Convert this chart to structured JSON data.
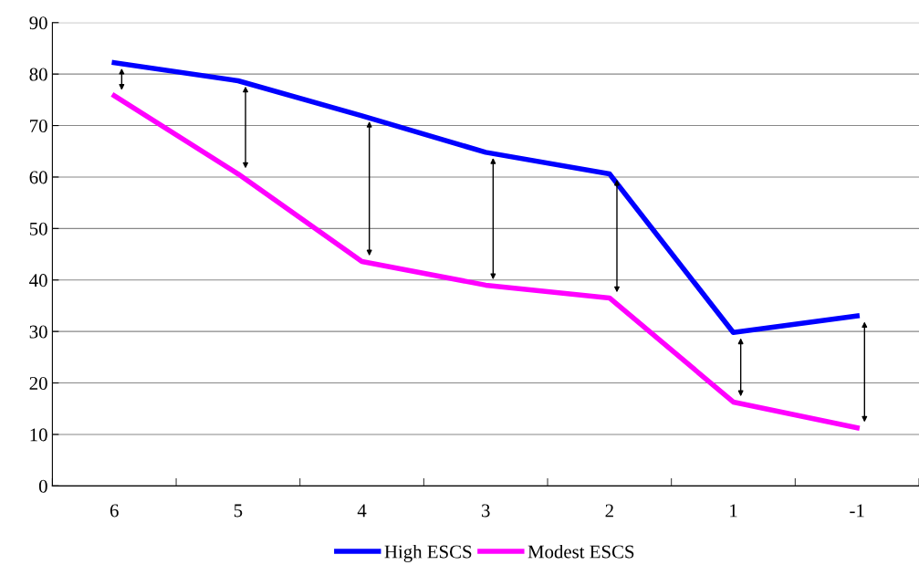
{
  "chart_data": {
    "type": "line",
    "categories": [
      "6",
      "5",
      "4",
      "3",
      "2",
      "1",
      "-1"
    ],
    "series": [
      {
        "name": "High ESCS",
        "color": "#0000ff",
        "values": [
          82.2,
          78.7,
          71.9,
          64.8,
          60.6,
          29.8,
          33.0
        ]
      },
      {
        "name": "Modest ESCS",
        "color": "#ff00ff",
        "values": [
          75.8,
          60.6,
          43.6,
          39.0,
          36.5,
          16.3,
          11.3
        ]
      }
    ],
    "ylim": [
      0,
      90
    ],
    "yticks": [
      0,
      10,
      20,
      30,
      40,
      50,
      60,
      70,
      80,
      90
    ],
    "grid": "y",
    "legend": "bottom",
    "marker": "none",
    "line_style": "solid"
  }
}
